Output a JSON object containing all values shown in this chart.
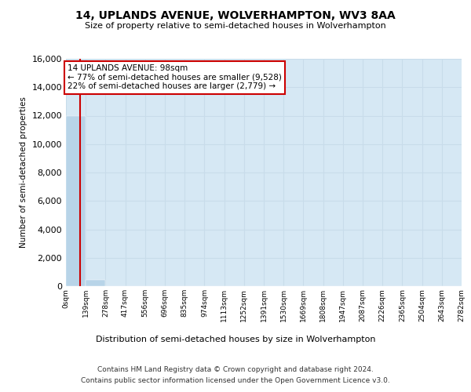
{
  "title_line1": "14, UPLANDS AVENUE, WOLVERHAMPTON, WV3 8AA",
  "title_line2": "Size of property relative to semi-detached houses in Wolverhampton",
  "xlabel": "Distribution of semi-detached houses by size in Wolverhampton",
  "ylabel": "Number of semi-detached properties",
  "footnote1": "Contains HM Land Registry data © Crown copyright and database right 2024.",
  "footnote2": "Contains public sector information licensed under the Open Government Licence v3.0.",
  "annotation_title": "14 UPLANDS AVENUE: 98sqm",
  "annotation_line1": "← 77% of semi-detached houses are smaller (9,528)",
  "annotation_line2": "22% of semi-detached houses are larger (2,779) →",
  "property_size": 98,
  "bin_edges": [
    0,
    139,
    278,
    417,
    556,
    696,
    835,
    974,
    1113,
    1252,
    1391,
    1530,
    1669,
    1808,
    1947,
    2087,
    2226,
    2365,
    2504,
    2643,
    2782
  ],
  "bar_heights": [
    12000,
    430,
    0,
    0,
    0,
    0,
    0,
    0,
    0,
    0,
    0,
    0,
    0,
    0,
    0,
    0,
    0,
    0,
    0,
    0
  ],
  "bar_color": "#b8d4e8",
  "grid_color": "#c8dcea",
  "background_color": "#d6e8f4",
  "red_line_color": "#cc0000",
  "annotation_box_color": "#cc0000",
  "ylim": [
    0,
    16000
  ],
  "yticks": [
    0,
    2000,
    4000,
    6000,
    8000,
    10000,
    12000,
    14000,
    16000
  ],
  "tick_labels": [
    "0sqm",
    "139sqm",
    "278sqm",
    "417sqm",
    "556sqm",
    "696sqm",
    "835sqm",
    "974sqm",
    "1113sqm",
    "1252sqm",
    "1391sqm",
    "1530sqm",
    "1669sqm",
    "1808sqm",
    "1947sqm",
    "2087sqm",
    "2226sqm",
    "2365sqm",
    "2504sqm",
    "2643sqm",
    "2782sqm"
  ]
}
